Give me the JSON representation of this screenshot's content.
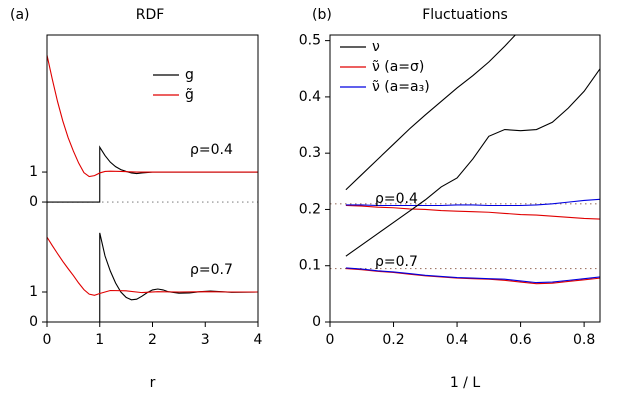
{
  "chart_data": [
    {
      "type": "line",
      "panel": "(a)",
      "title": "RDF",
      "x_label": "r",
      "xlim": [
        0,
        4
      ],
      "xticks": [
        0,
        1,
        2,
        3,
        4
      ],
      "ylim": [
        0,
        9.57
      ],
      "yticks": [
        {
          "value": 0,
          "label": "0"
        },
        1,
        {
          "value": 4,
          "label": "0"
        },
        {
          "value": 5,
          "label": "1"
        }
      ],
      "groups": [
        {
          "label": "ρ=0.4",
          "reference": 4,
          "reference_color": "#888888",
          "series": [
            {
              "name": "g",
              "color": "#000000",
              "x": [
                0,
                1,
                1,
                1.1,
                1.2,
                1.3,
                1.4,
                1.5,
                1.6,
                1.7,
                1.8,
                2,
                2.5,
                3,
                4
              ],
              "values": [
                4,
                4,
                5.83,
                5.55,
                5.33,
                5.18,
                5.08,
                5.02,
                4.97,
                4.95,
                4.97,
                5,
                5,
                5,
                5
              ]
            },
            {
              "name": "g̃",
              "color": "#e00000",
              "x": [
                0,
                0.1,
                0.2,
                0.3,
                0.4,
                0.5,
                0.6,
                0.7,
                0.8,
                0.9,
                1,
                1.1,
                1.2,
                1.4,
                1.7,
                2,
                3,
                4
              ],
              "values": [
                8.9,
                8.1,
                7.35,
                6.7,
                6.15,
                5.7,
                5.3,
                4.98,
                4.85,
                4.88,
                4.97,
                5.02,
                5.03,
                5.02,
                5,
                5,
                5,
                5
              ]
            }
          ]
        },
        {
          "label": "ρ=0.7",
          "series": [
            {
              "color": "#000000",
              "x": [
                0,
                1,
                1,
                1.1,
                1.2,
                1.3,
                1.4,
                1.5,
                1.6,
                1.7,
                1.8,
                1.9,
                2,
                2.1,
                2.2,
                2.3,
                2.5,
                2.7,
                2.9,
                3.1,
                3.3,
                3.5,
                4
              ],
              "values": [
                0,
                0,
                2.97,
                2.2,
                1.7,
                1.3,
                1.0,
                0.82,
                0.74,
                0.76,
                0.86,
                0.98,
                1.07,
                1.1,
                1.07,
                1.01,
                0.96,
                0.97,
                1.01,
                1.03,
                1.01,
                0.99,
                1
              ]
            },
            {
              "color": "#e00000",
              "x": [
                0,
                0.1,
                0.2,
                0.3,
                0.4,
                0.5,
                0.6,
                0.7,
                0.8,
                0.9,
                1,
                1.2,
                1.5,
                1.8,
                2.1,
                2.5,
                3,
                3.5,
                4
              ],
              "values": [
                2.83,
                2.55,
                2.28,
                2.02,
                1.78,
                1.55,
                1.3,
                1.08,
                0.93,
                0.89,
                0.95,
                1.05,
                1.04,
                0.98,
                1.01,
                1.0,
                1.01,
                1.0,
                1.0
              ]
            }
          ]
        }
      ]
    },
    {
      "type": "line",
      "panel": "(b)",
      "title": "Fluctuations",
      "x_label": "1 / L",
      "xlim": [
        0,
        0.85
      ],
      "xticks": [
        0,
        0.2,
        0.4,
        0.6,
        0.8
      ],
      "ylim": [
        0,
        0.51
      ],
      "yticks": [
        0,
        0.1,
        0.2,
        0.3,
        0.4,
        0.5
      ],
      "x": [
        0.05,
        0.1,
        0.15,
        0.2,
        0.25,
        0.3,
        0.35,
        0.4,
        0.45,
        0.5,
        0.55,
        0.6,
        0.65,
        0.7,
        0.75,
        0.8,
        0.85
      ],
      "groups": [
        {
          "label": "ρ=0.4",
          "reference": 0.21,
          "reference_color": "#a07868",
          "series": [
            {
              "name": "ν",
              "color": "#000000",
              "values": [
                0.235,
                0.262,
                0.289,
                0.316,
                0.343,
                0.368,
                0.392,
                0.416,
                0.438,
                0.462,
                0.49,
                0.52,
                0.55,
                null,
                null,
                null,
                null
              ]
            },
            {
              "name": "ν̃ (a=σ)",
              "color": "#e00000",
              "values": [
                0.207,
                0.206,
                0.204,
                0.203,
                0.201,
                0.2,
                0.198,
                0.197,
                0.196,
                0.195,
                0.193,
                0.191,
                0.19,
                0.188,
                0.186,
                0.184,
                0.183
              ]
            },
            {
              "name": "ν̃ (a=a₃)",
              "color": "#0000e0",
              "values": [
                0.208,
                0.208,
                0.207,
                0.207,
                0.207,
                0.207,
                0.207,
                0.208,
                0.208,
                0.207,
                0.207,
                0.207,
                0.208,
                0.21,
                0.213,
                0.216,
                0.218
              ]
            }
          ]
        },
        {
          "label": "ρ=0.7",
          "reference": 0.095,
          "reference_color": "#a07868",
          "series": [
            {
              "color": "#000000",
              "values": [
                0.117,
                0.137,
                0.157,
                0.177,
                0.197,
                0.217,
                0.24,
                0.256,
                0.29,
                0.33,
                0.342,
                0.34,
                0.342,
                0.355,
                0.38,
                0.41,
                0.45
              ]
            },
            {
              "color": "#e00000",
              "values": [
                0.095,
                0.093,
                0.09,
                0.088,
                0.085,
                0.082,
                0.08,
                0.078,
                0.077,
                0.076,
                0.074,
                0.071,
                0.068,
                0.069,
                0.072,
                0.075,
                0.078
              ]
            },
            {
              "color": "#0000e0",
              "values": [
                0.096,
                0.094,
                0.091,
                0.089,
                0.086,
                0.083,
                0.081,
                0.079,
                0.078,
                0.077,
                0.076,
                0.073,
                0.07,
                0.071,
                0.074,
                0.077,
                0.08
              ]
            }
          ]
        }
      ]
    }
  ]
}
